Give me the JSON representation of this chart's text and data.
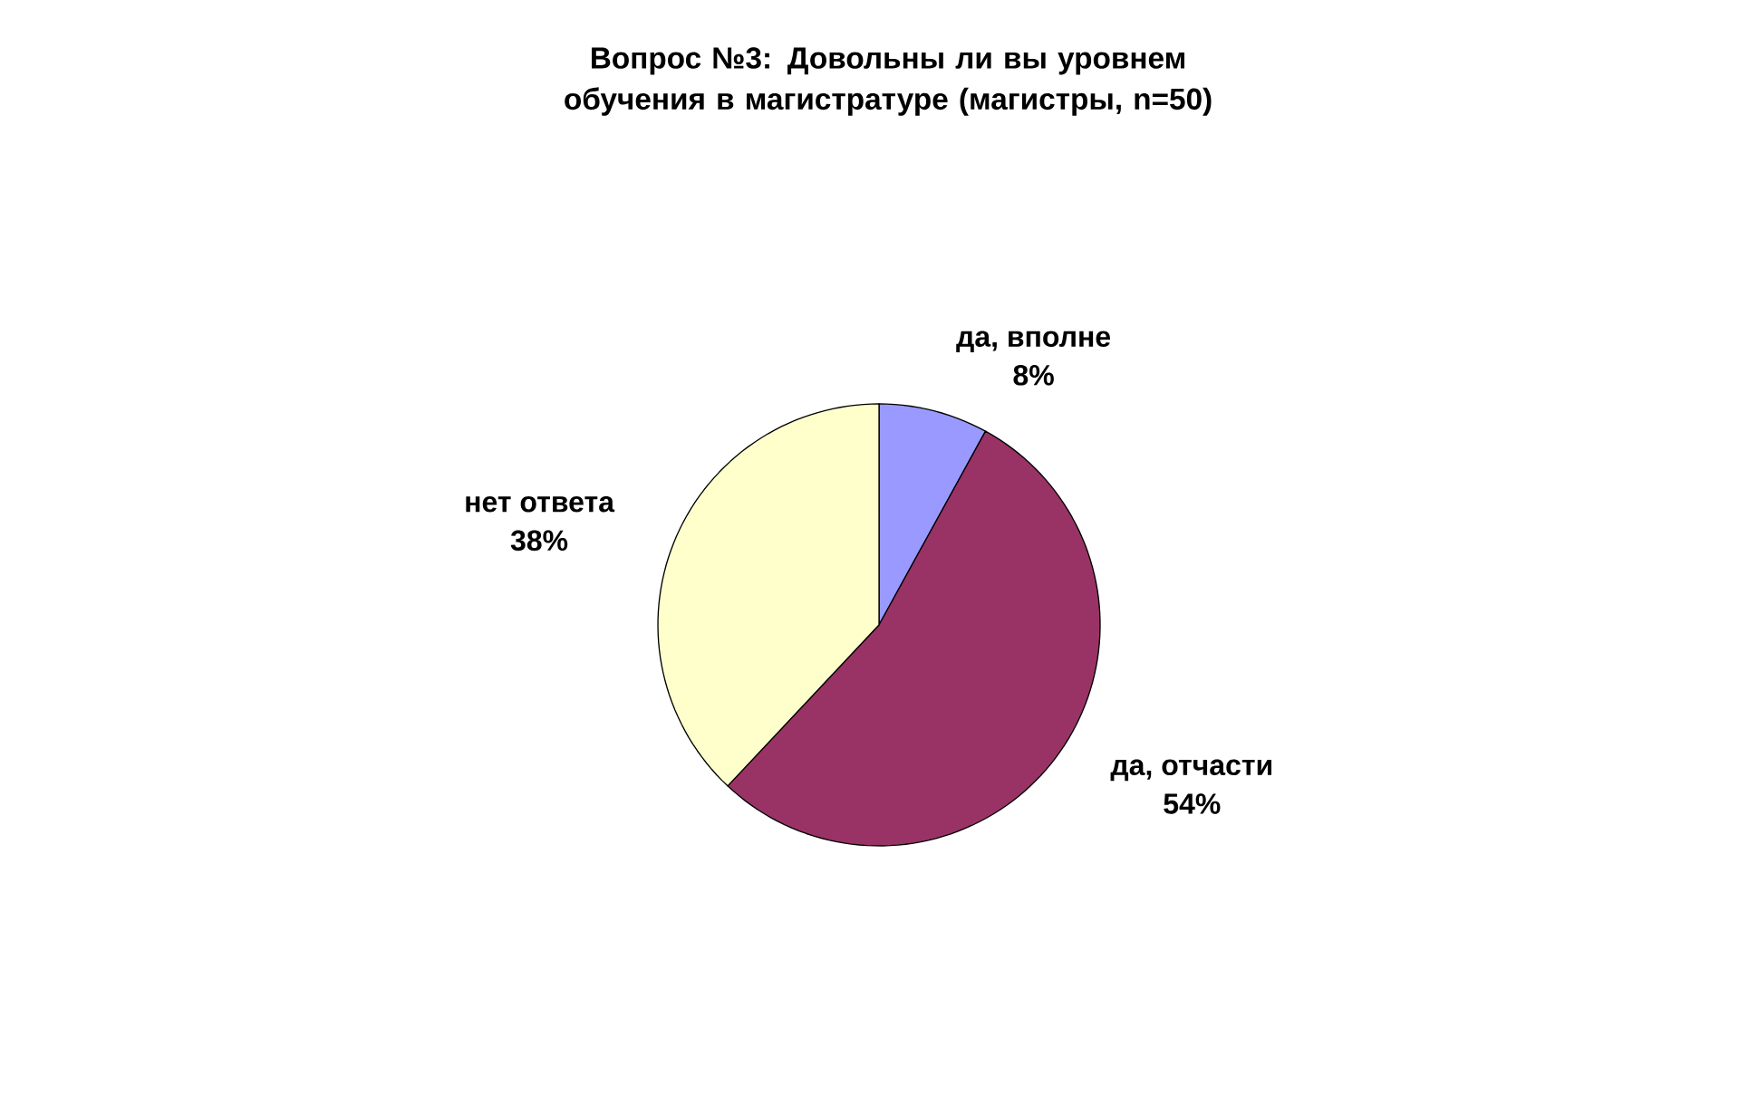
{
  "chart_data": {
    "type": "pie",
    "title": "Вопрос №3: Довольны ли вы уровнем обучения в магистратуре (магистры, n=50)",
    "categories": [
      "да, вполне",
      "да, отчасти",
      "нет ответа"
    ],
    "values": [
      8,
      54,
      38
    ],
    "value_labels": [
      "8%",
      "54%",
      "38%"
    ],
    "colors": [
      "#9999ff",
      "#993366",
      "#ffffcc"
    ]
  }
}
